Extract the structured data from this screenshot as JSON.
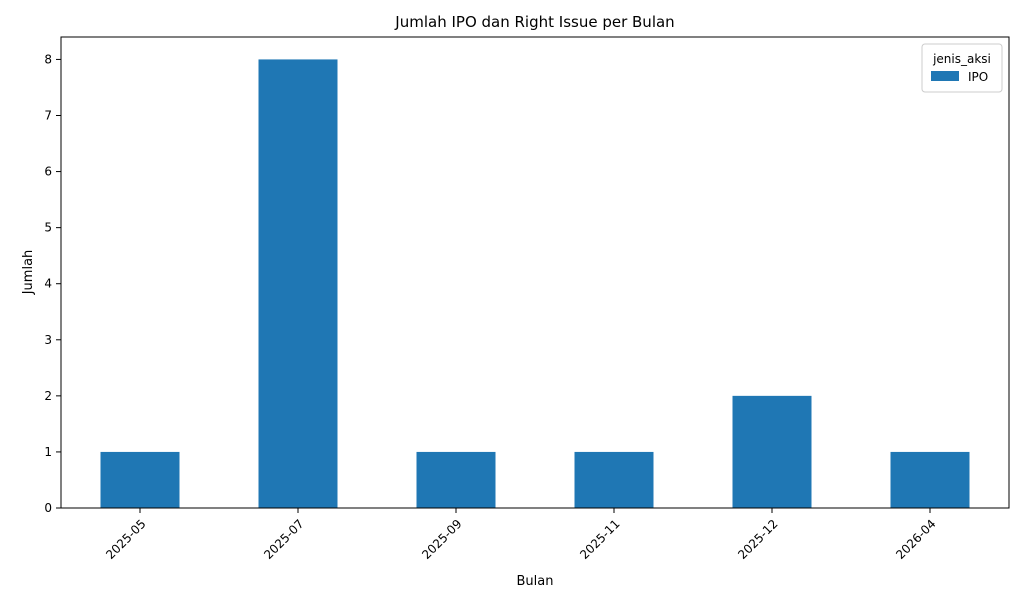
{
  "chart_data": {
    "type": "bar",
    "title": "Jumlah IPO dan Right Issue per Bulan",
    "xlabel": "Bulan",
    "ylabel": "Jumlah",
    "categories": [
      "2025-05",
      "2025-07",
      "2025-09",
      "2025-11",
      "2025-12",
      "2026-04"
    ],
    "series": [
      {
        "name": "IPO",
        "color": "#1f77b4",
        "values": [
          1,
          8,
          1,
          1,
          2,
          1
        ]
      }
    ],
    "yticks": [
      "0",
      "1",
      "2",
      "3",
      "4",
      "5",
      "6",
      "7",
      "8"
    ],
    "ylim": [
      0,
      8.4
    ],
    "grid": false,
    "legend": {
      "title": "jenis_aksi",
      "placement": "top-right"
    }
  }
}
